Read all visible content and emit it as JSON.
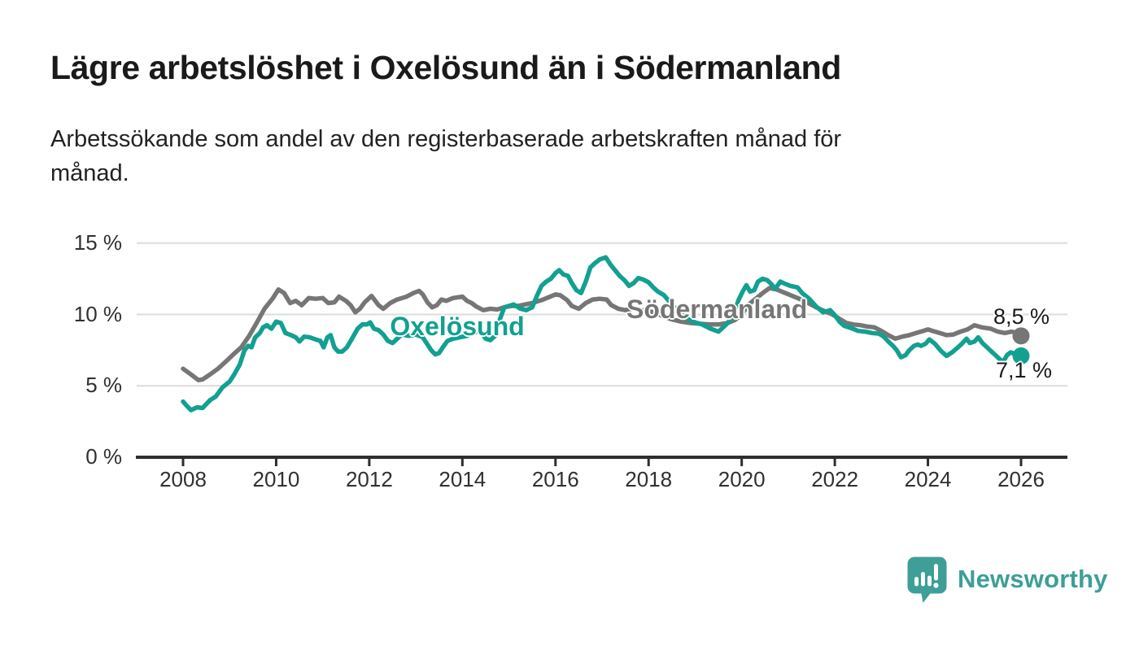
{
  "header": {
    "title": "Lägre arbetslöshet i Oxelösund än i Södermanland",
    "subtitle_line1": "Arbetssökande som andel av den registerbaserade arbetskraften månad för",
    "subtitle_line2": "månad."
  },
  "chart_data": {
    "type": "line",
    "title": "Lägre arbetslöshet i Oxelösund än i Södermanland",
    "subtitle": "Arbetssökande som andel av den registerbaserade arbetskraften månad för månad.",
    "xlabel": "",
    "ylabel": "",
    "unit": "%",
    "xlim": [
      2007.7,
      2027.0
    ],
    "ylim": [
      0,
      15
    ],
    "grid": "horizontal",
    "legend_position": "inline-labels",
    "x_ticks": [
      2008,
      2010,
      2012,
      2014,
      2016,
      2018,
      2020,
      2022,
      2024,
      2026
    ],
    "x_tick_labels": [
      "2008",
      "2010",
      "2012",
      "2014",
      "2016",
      "2018",
      "2020",
      "2022",
      "2024",
      "2026"
    ],
    "y_ticks": [
      15,
      10,
      5,
      0
    ],
    "y_tick_labels": [
      "15 %",
      "10 %",
      "5 %",
      "0 %"
    ],
    "axis_color": "#2e2e2e",
    "grid_color": "#dcdcdc",
    "series": [
      {
        "name": "Oxelösund",
        "color": "#12a091",
        "end_value": 7.1,
        "end_label": "7,1 %",
        "points": [
          [
            2008.0,
            3.9
          ],
          [
            2008.08,
            3.6
          ],
          [
            2008.17,
            3.3
          ],
          [
            2008.3,
            3.5
          ],
          [
            2008.42,
            3.45
          ],
          [
            2008.58,
            4.0
          ],
          [
            2008.7,
            4.25
          ],
          [
            2008.85,
            4.9
          ],
          [
            2009.0,
            5.3
          ],
          [
            2009.1,
            5.8
          ],
          [
            2009.22,
            6.5
          ],
          [
            2009.32,
            7.5
          ],
          [
            2009.4,
            7.8
          ],
          [
            2009.47,
            7.7
          ],
          [
            2009.55,
            8.4
          ],
          [
            2009.65,
            8.7
          ],
          [
            2009.72,
            9.1
          ],
          [
            2009.8,
            9.25
          ],
          [
            2009.9,
            9.0
          ],
          [
            2010.0,
            9.5
          ],
          [
            2010.1,
            9.4
          ],
          [
            2010.2,
            8.7
          ],
          [
            2010.32,
            8.55
          ],
          [
            2010.42,
            8.4
          ],
          [
            2010.5,
            8.1
          ],
          [
            2010.6,
            8.45
          ],
          [
            2010.72,
            8.4
          ],
          [
            2010.85,
            8.25
          ],
          [
            2010.95,
            8.15
          ],
          [
            2011.02,
            7.7
          ],
          [
            2011.1,
            8.4
          ],
          [
            2011.17,
            8.55
          ],
          [
            2011.25,
            7.7
          ],
          [
            2011.33,
            7.4
          ],
          [
            2011.42,
            7.4
          ],
          [
            2011.52,
            7.7
          ],
          [
            2011.62,
            8.25
          ],
          [
            2011.75,
            9.0
          ],
          [
            2011.85,
            9.3
          ],
          [
            2011.95,
            9.3
          ],
          [
            2012.02,
            9.45
          ],
          [
            2012.1,
            9.0
          ],
          [
            2012.2,
            8.9
          ],
          [
            2012.3,
            8.6
          ],
          [
            2012.4,
            8.15
          ],
          [
            2012.5,
            8.0
          ],
          [
            2012.6,
            8.3
          ],
          [
            2012.7,
            8.6
          ],
          [
            2012.85,
            8.5
          ],
          [
            2013.0,
            8.6
          ],
          [
            2013.15,
            8.4
          ],
          [
            2013.25,
            7.9
          ],
          [
            2013.33,
            7.5
          ],
          [
            2013.42,
            7.2
          ],
          [
            2013.5,
            7.3
          ],
          [
            2013.58,
            7.7
          ],
          [
            2013.68,
            8.15
          ],
          [
            2013.8,
            8.3
          ],
          [
            2013.95,
            8.4
          ],
          [
            2014.1,
            8.5
          ],
          [
            2014.25,
            8.7
          ],
          [
            2014.37,
            8.9
          ],
          [
            2014.5,
            8.3
          ],
          [
            2014.6,
            8.2
          ],
          [
            2014.7,
            8.5
          ],
          [
            2014.8,
            9.6
          ],
          [
            2014.9,
            10.5
          ],
          [
            2015.0,
            10.6
          ],
          [
            2015.1,
            10.7
          ],
          [
            2015.25,
            10.4
          ],
          [
            2015.37,
            10.3
          ],
          [
            2015.5,
            10.5
          ],
          [
            2015.6,
            11.3
          ],
          [
            2015.7,
            12.0
          ],
          [
            2015.8,
            12.3
          ],
          [
            2015.9,
            12.5
          ],
          [
            2016.0,
            12.9
          ],
          [
            2016.08,
            13.1
          ],
          [
            2016.17,
            12.8
          ],
          [
            2016.27,
            12.7
          ],
          [
            2016.35,
            12.2
          ],
          [
            2016.45,
            11.7
          ],
          [
            2016.55,
            11.5
          ],
          [
            2016.65,
            12.3
          ],
          [
            2016.75,
            13.3
          ],
          [
            2016.85,
            13.6
          ],
          [
            2016.95,
            13.85
          ],
          [
            2017.08,
            14.0
          ],
          [
            2017.18,
            13.5
          ],
          [
            2017.28,
            13.1
          ],
          [
            2017.38,
            12.7
          ],
          [
            2017.48,
            12.4
          ],
          [
            2017.58,
            12.0
          ],
          [
            2017.68,
            12.2
          ],
          [
            2017.78,
            12.55
          ],
          [
            2017.88,
            12.45
          ],
          [
            2018.0,
            12.25
          ],
          [
            2018.1,
            11.9
          ],
          [
            2018.2,
            11.6
          ],
          [
            2018.33,
            11.35
          ],
          [
            2018.5,
            10.7
          ],
          [
            2018.67,
            10.1
          ],
          [
            2018.83,
            9.7
          ],
          [
            2019.0,
            9.45
          ],
          [
            2019.15,
            9.3
          ],
          [
            2019.33,
            9.0
          ],
          [
            2019.5,
            8.8
          ],
          [
            2019.6,
            9.1
          ],
          [
            2019.7,
            9.4
          ],
          [
            2019.83,
            10.0
          ],
          [
            2019.93,
            11.0
          ],
          [
            2020.02,
            11.6
          ],
          [
            2020.1,
            12.05
          ],
          [
            2020.18,
            11.6
          ],
          [
            2020.27,
            11.7
          ],
          [
            2020.35,
            12.3
          ],
          [
            2020.45,
            12.5
          ],
          [
            2020.55,
            12.4
          ],
          [
            2020.63,
            12.15
          ],
          [
            2020.72,
            11.8
          ],
          [
            2020.83,
            12.3
          ],
          [
            2020.93,
            12.15
          ],
          [
            2021.05,
            12.0
          ],
          [
            2021.2,
            11.9
          ],
          [
            2021.3,
            11.5
          ],
          [
            2021.45,
            11.1
          ],
          [
            2021.6,
            10.55
          ],
          [
            2021.75,
            10.15
          ],
          [
            2021.9,
            10.3
          ],
          [
            2022.0,
            9.95
          ],
          [
            2022.1,
            9.5
          ],
          [
            2022.2,
            9.2
          ],
          [
            2022.35,
            9.05
          ],
          [
            2022.5,
            8.85
          ],
          [
            2022.65,
            8.8
          ],
          [
            2022.8,
            8.7
          ],
          [
            2022.95,
            8.65
          ],
          [
            2023.05,
            8.45
          ],
          [
            2023.15,
            8.1
          ],
          [
            2023.25,
            7.8
          ],
          [
            2023.33,
            7.5
          ],
          [
            2023.42,
            7.0
          ],
          [
            2023.52,
            7.15
          ],
          [
            2023.6,
            7.5
          ],
          [
            2023.7,
            7.8
          ],
          [
            2023.78,
            7.9
          ],
          [
            2023.85,
            7.8
          ],
          [
            2023.95,
            7.95
          ],
          [
            2024.03,
            8.25
          ],
          [
            2024.15,
            7.95
          ],
          [
            2024.28,
            7.45
          ],
          [
            2024.4,
            7.1
          ],
          [
            2024.52,
            7.35
          ],
          [
            2024.63,
            7.65
          ],
          [
            2024.73,
            7.95
          ],
          [
            2024.83,
            8.3
          ],
          [
            2024.9,
            8.0
          ],
          [
            2025.0,
            8.1
          ],
          [
            2025.08,
            8.4
          ],
          [
            2025.17,
            8.0
          ],
          [
            2025.27,
            7.7
          ],
          [
            2025.35,
            7.45
          ],
          [
            2025.45,
            7.15
          ],
          [
            2025.55,
            6.85
          ],
          [
            2025.62,
            6.7
          ],
          [
            2025.7,
            7.15
          ],
          [
            2025.78,
            7.35
          ],
          [
            2025.85,
            7.25
          ],
          [
            2025.9,
            7.0
          ],
          [
            2025.95,
            7.1
          ],
          [
            2026.0,
            7.1
          ]
        ]
      },
      {
        "name": "Södermanland",
        "color": "#767676",
        "end_value": 8.5,
        "end_label": "8,5 %",
        "points": [
          [
            2008.0,
            6.2
          ],
          [
            2008.17,
            5.8
          ],
          [
            2008.33,
            5.4
          ],
          [
            2008.42,
            5.45
          ],
          [
            2008.58,
            5.8
          ],
          [
            2008.75,
            6.2
          ],
          [
            2008.92,
            6.7
          ],
          [
            2009.08,
            7.2
          ],
          [
            2009.25,
            7.7
          ],
          [
            2009.42,
            8.5
          ],
          [
            2009.58,
            9.4
          ],
          [
            2009.75,
            10.4
          ],
          [
            2009.92,
            11.1
          ],
          [
            2010.05,
            11.75
          ],
          [
            2010.17,
            11.5
          ],
          [
            2010.3,
            10.8
          ],
          [
            2010.42,
            10.95
          ],
          [
            2010.55,
            10.65
          ],
          [
            2010.7,
            11.15
          ],
          [
            2010.85,
            11.1
          ],
          [
            2011.0,
            11.15
          ],
          [
            2011.12,
            10.8
          ],
          [
            2011.25,
            10.85
          ],
          [
            2011.35,
            11.25
          ],
          [
            2011.5,
            10.95
          ],
          [
            2011.6,
            10.65
          ],
          [
            2011.7,
            10.15
          ],
          [
            2011.8,
            10.4
          ],
          [
            2011.9,
            10.85
          ],
          [
            2012.05,
            11.3
          ],
          [
            2012.2,
            10.65
          ],
          [
            2012.3,
            10.4
          ],
          [
            2012.45,
            10.8
          ],
          [
            2012.6,
            11.05
          ],
          [
            2012.8,
            11.25
          ],
          [
            2012.95,
            11.5
          ],
          [
            2013.07,
            11.65
          ],
          [
            2013.15,
            11.4
          ],
          [
            2013.25,
            10.85
          ],
          [
            2013.35,
            10.5
          ],
          [
            2013.45,
            10.65
          ],
          [
            2013.55,
            11.05
          ],
          [
            2013.65,
            10.95
          ],
          [
            2013.8,
            11.15
          ],
          [
            2014.0,
            11.25
          ],
          [
            2014.1,
            10.95
          ],
          [
            2014.2,
            10.8
          ],
          [
            2014.3,
            10.55
          ],
          [
            2014.45,
            10.3
          ],
          [
            2014.6,
            10.4
          ],
          [
            2014.75,
            10.35
          ],
          [
            2014.9,
            10.5
          ],
          [
            2015.05,
            10.6
          ],
          [
            2015.2,
            10.6
          ],
          [
            2015.35,
            10.7
          ],
          [
            2015.5,
            10.8
          ],
          [
            2015.7,
            11.0
          ],
          [
            2015.85,
            11.2
          ],
          [
            2016.0,
            11.4
          ],
          [
            2016.1,
            11.35
          ],
          [
            2016.25,
            11.0
          ],
          [
            2016.35,
            10.6
          ],
          [
            2016.5,
            10.4
          ],
          [
            2016.65,
            10.8
          ],
          [
            2016.8,
            11.05
          ],
          [
            2016.95,
            11.1
          ],
          [
            2017.1,
            11.05
          ],
          [
            2017.2,
            10.65
          ],
          [
            2017.35,
            10.4
          ],
          [
            2017.5,
            10.3
          ],
          [
            2017.65,
            10.4
          ],
          [
            2017.8,
            10.3
          ],
          [
            2018.0,
            10.25
          ],
          [
            2018.15,
            10.1
          ],
          [
            2018.3,
            9.9
          ],
          [
            2018.5,
            9.65
          ],
          [
            2018.7,
            9.5
          ],
          [
            2018.9,
            9.4
          ],
          [
            2019.1,
            9.35
          ],
          [
            2019.3,
            9.3
          ],
          [
            2019.5,
            9.3
          ],
          [
            2019.7,
            9.4
          ],
          [
            2019.85,
            9.6
          ],
          [
            2020.0,
            10.0
          ],
          [
            2020.15,
            10.7
          ],
          [
            2020.3,
            11.1
          ],
          [
            2020.45,
            11.5
          ],
          [
            2020.6,
            11.85
          ],
          [
            2020.75,
            11.75
          ],
          [
            2020.9,
            11.55
          ],
          [
            2021.05,
            11.35
          ],
          [
            2021.2,
            11.15
          ],
          [
            2021.4,
            10.85
          ],
          [
            2021.6,
            10.5
          ],
          [
            2021.8,
            10.2
          ],
          [
            2021.95,
            10.0
          ],
          [
            2022.1,
            9.7
          ],
          [
            2022.25,
            9.4
          ],
          [
            2022.4,
            9.3
          ],
          [
            2022.55,
            9.25
          ],
          [
            2022.7,
            9.15
          ],
          [
            2022.85,
            9.1
          ],
          [
            2023.0,
            8.85
          ],
          [
            2023.15,
            8.55
          ],
          [
            2023.3,
            8.3
          ],
          [
            2023.45,
            8.45
          ],
          [
            2023.6,
            8.55
          ],
          [
            2023.75,
            8.7
          ],
          [
            2023.9,
            8.85
          ],
          [
            2024.0,
            8.95
          ],
          [
            2024.1,
            8.85
          ],
          [
            2024.25,
            8.7
          ],
          [
            2024.4,
            8.55
          ],
          [
            2024.55,
            8.6
          ],
          [
            2024.7,
            8.8
          ],
          [
            2024.85,
            8.95
          ],
          [
            2025.0,
            9.25
          ],
          [
            2025.15,
            9.1
          ],
          [
            2025.35,
            9.0
          ],
          [
            2025.5,
            8.8
          ],
          [
            2025.65,
            8.7
          ],
          [
            2025.8,
            8.8
          ],
          [
            2025.9,
            8.7
          ],
          [
            2026.0,
            8.5
          ]
        ]
      }
    ]
  },
  "branding": {
    "logo_text": "Newsworthy",
    "logo_color": "#3d9f97"
  }
}
